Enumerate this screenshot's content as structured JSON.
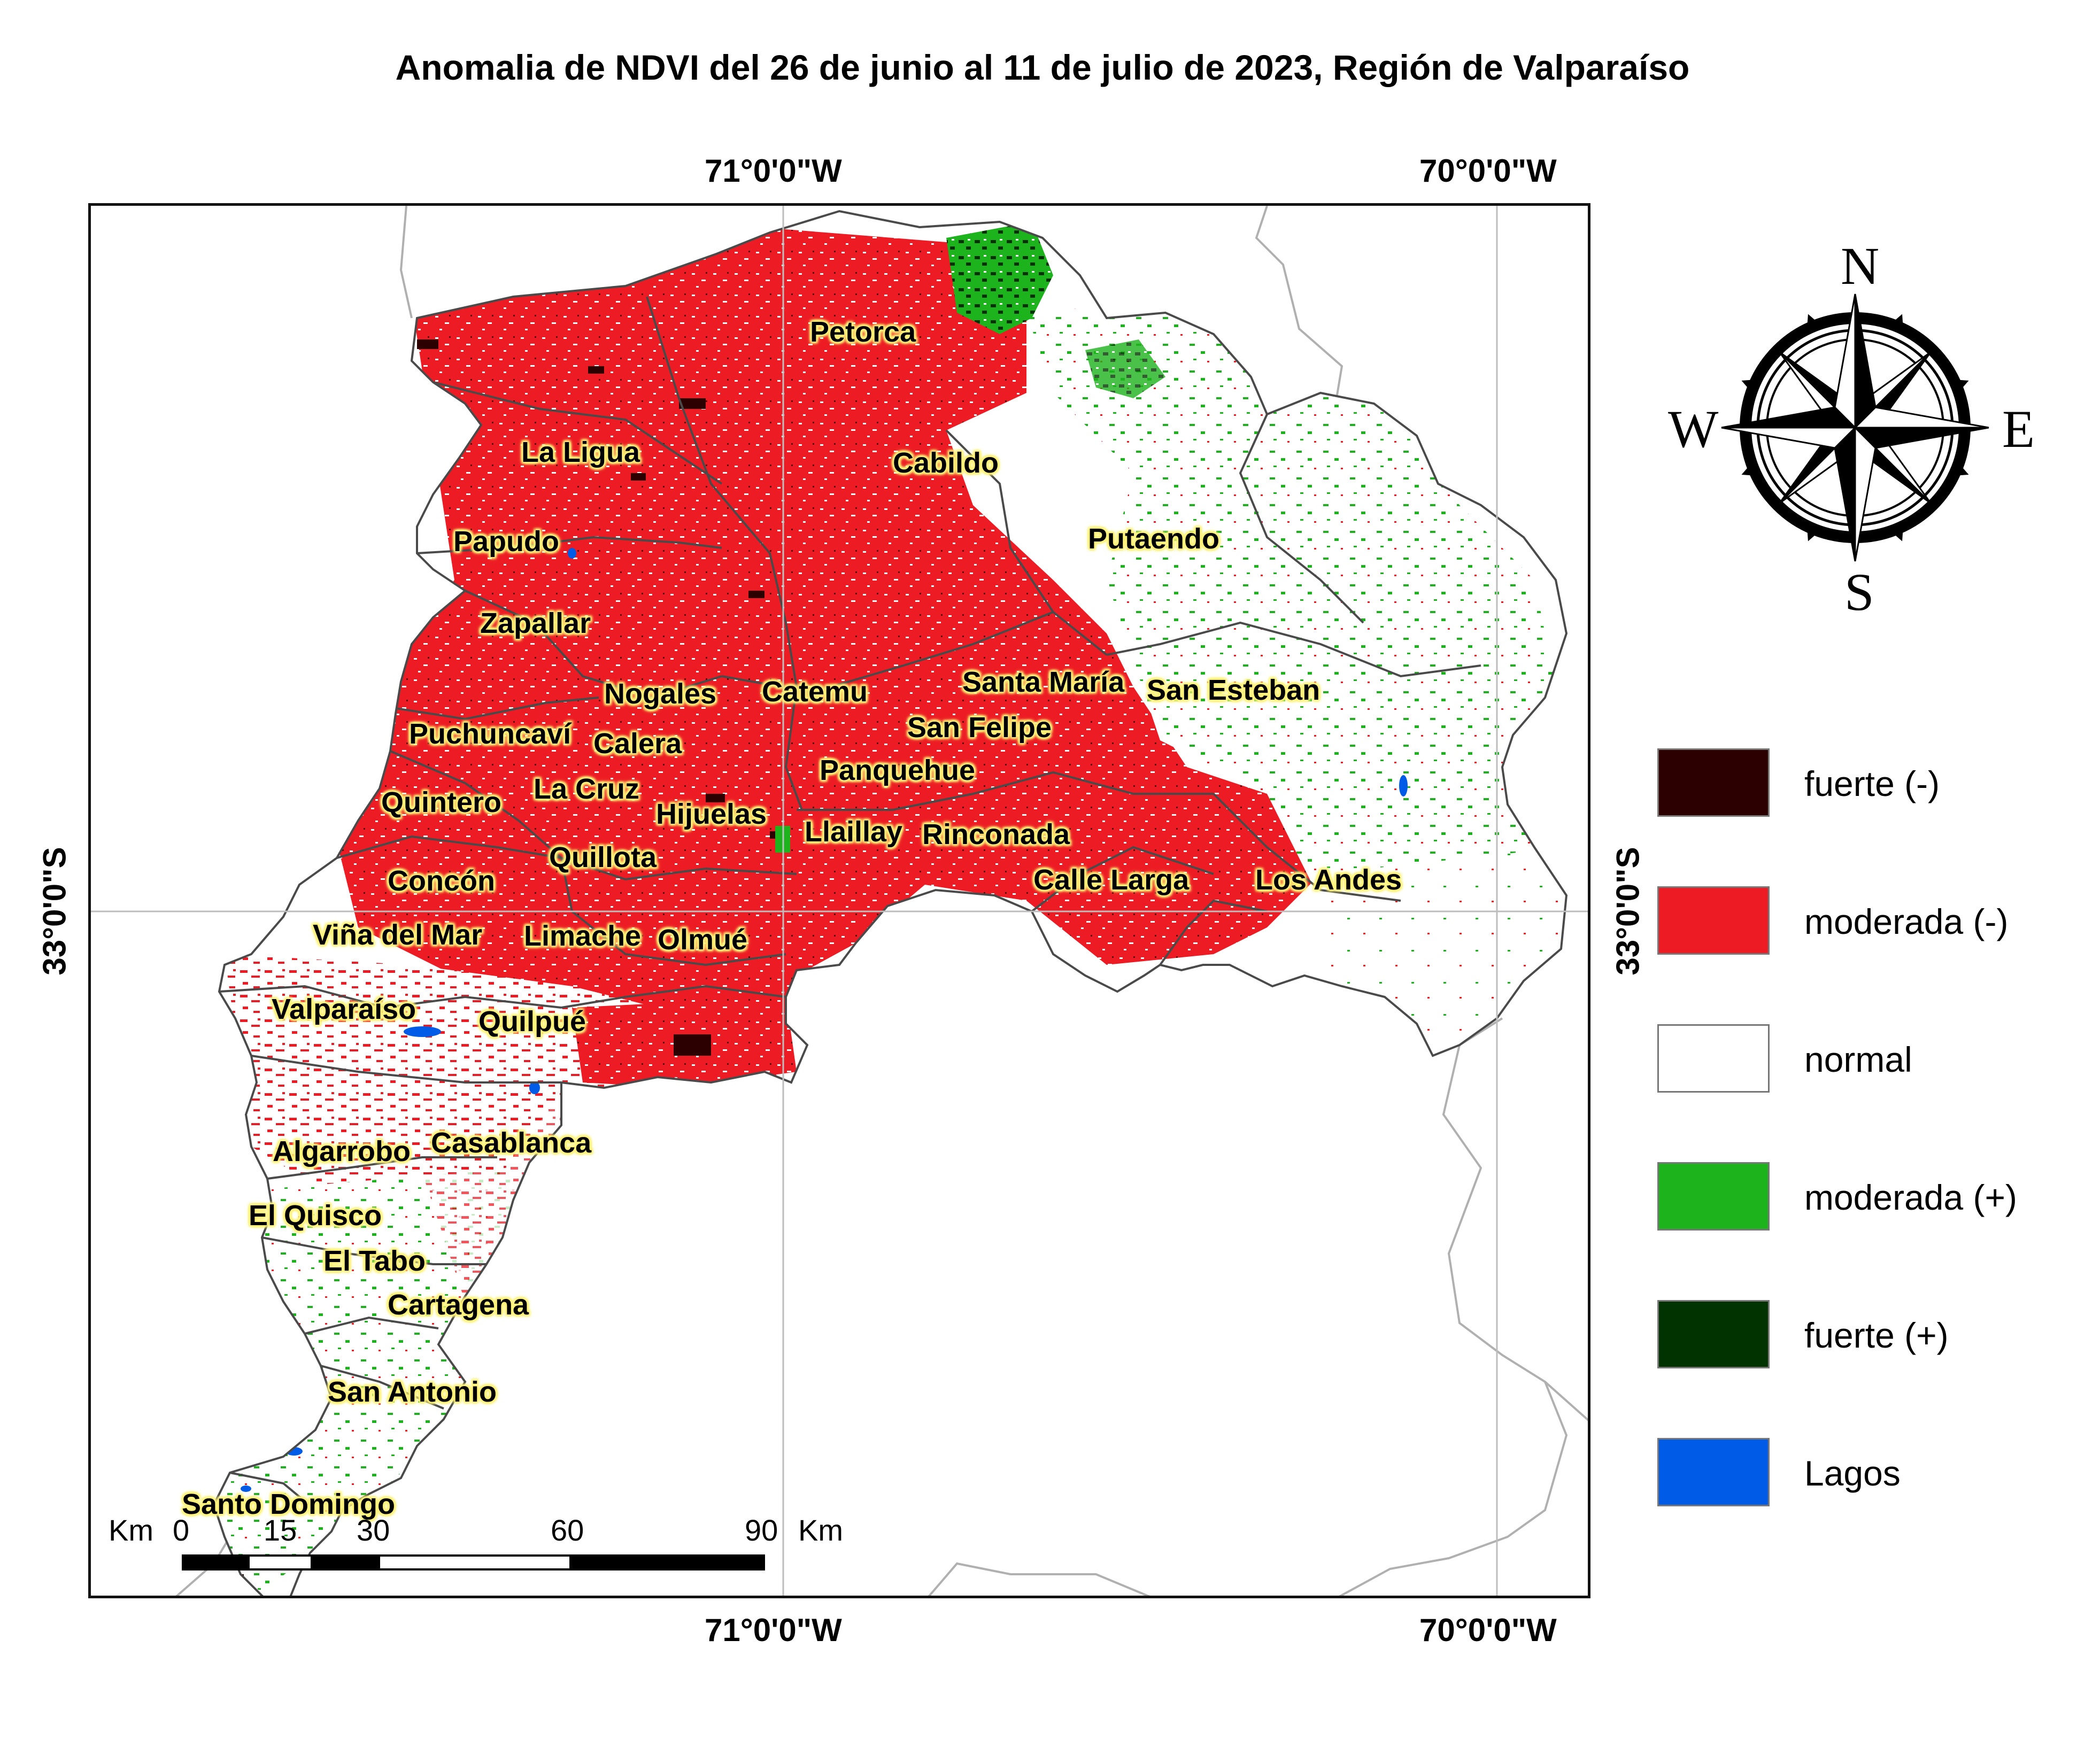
{
  "title": "Anomalia de NDVI del 26 de junio al 11 de julio de 2023, Región de Valparaíso",
  "graticule": {
    "lon_labels": [
      "71°0'0\"W",
      "70°0'0\"W"
    ],
    "lat_labels": [
      "33°0'0\"S"
    ]
  },
  "places": [
    {
      "name": "Petorca"
    },
    {
      "name": "La Ligua"
    },
    {
      "name": "Cabildo"
    },
    {
      "name": "Papudo"
    },
    {
      "name": "Putaendo"
    },
    {
      "name": "Zapallar"
    },
    {
      "name": "Nogales"
    },
    {
      "name": "Catemu"
    },
    {
      "name": "Santa María"
    },
    {
      "name": "San Esteban"
    },
    {
      "name": "Puchuncaví"
    },
    {
      "name": "Calera"
    },
    {
      "name": "San Felipe"
    },
    {
      "name": "Panquehue"
    },
    {
      "name": "La Cruz"
    },
    {
      "name": "Quintero"
    },
    {
      "name": "Hijuelas"
    },
    {
      "name": "Llaillay"
    },
    {
      "name": "Rinconada"
    },
    {
      "name": "Quillota"
    },
    {
      "name": "Concón"
    },
    {
      "name": "Calle Larga"
    },
    {
      "name": "Los Andes"
    },
    {
      "name": "Viña del Mar"
    },
    {
      "name": "Limache"
    },
    {
      "name": "Olmué"
    },
    {
      "name": "Valparaíso"
    },
    {
      "name": "Quilpué"
    },
    {
      "name": "Algarrobo"
    },
    {
      "name": "Casablanca"
    },
    {
      "name": "El Quisco"
    },
    {
      "name": "El Tabo"
    },
    {
      "name": "Cartagena"
    },
    {
      "name": "San Antonio"
    },
    {
      "name": "Santo Domingo"
    }
  ],
  "scale_bar": {
    "unit": "Km",
    "ticks": [
      "0",
      "15",
      "30",
      "60",
      "90"
    ],
    "end_label": "Km"
  },
  "compass": {
    "n": "N",
    "s": "S",
    "e": "E",
    "w": "W"
  },
  "legend": [
    {
      "label": "fuerte (-)",
      "color": "#2d0000"
    },
    {
      "label": "moderada (-)",
      "color": "#ed1c24"
    },
    {
      "label": "normal",
      "color": "#ffffff"
    },
    {
      "label": "moderada (+)",
      "color": "#1db31d"
    },
    {
      "label": "fuerte (+)",
      "color": "#003300"
    },
    {
      "label": "Lagos",
      "color": "#005ce6"
    }
  ]
}
